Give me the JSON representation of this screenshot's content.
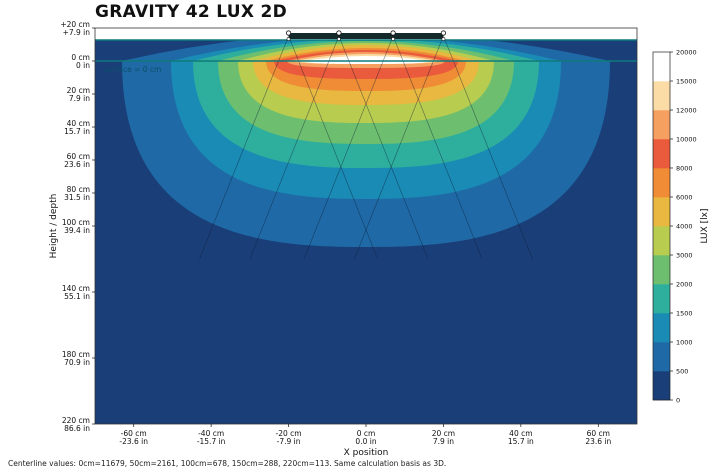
{
  "title": "GRAVITY 42 LUX 2D",
  "footnote": "Centerline values: 0cm=11679, 50cm=2161, 100cm=678, 150cm=288, 220cm=113. Same calculation basis as 3D.",
  "surface_label": "surface = 0 cm",
  "chart_data": {
    "type": "heatmap",
    "title": "GRAVITY 42 LUX 2D",
    "xlabel": "X position",
    "ylabel": "Height / depth",
    "xlim_cm": [
      -70,
      70
    ],
    "ylim_cm": [
      20,
      -220
    ],
    "x_ticks": [
      {
        "cm": -60,
        "label_cm": "-60 cm",
        "label_in": "-23.6 in"
      },
      {
        "cm": -40,
        "label_cm": "-40 cm",
        "label_in": "-15.7 in"
      },
      {
        "cm": -20,
        "label_cm": "-20 cm",
        "label_in": "-7.9 in"
      },
      {
        "cm": 0,
        "label_cm": "0 cm",
        "label_in": "0.0 in"
      },
      {
        "cm": 20,
        "label_cm": "20 cm",
        "label_in": "7.9 in"
      },
      {
        "cm": 40,
        "label_cm": "40 cm",
        "label_in": "15.7 in"
      },
      {
        "cm": 60,
        "label_cm": "60 cm",
        "label_in": "23.6 in"
      }
    ],
    "y_ticks": [
      {
        "cm": 20,
        "label_cm": "+20 cm",
        "label_in": "+7.9 in"
      },
      {
        "cm": 0,
        "label_cm": "0 cm",
        "label_in": "0 in"
      },
      {
        "cm": -20,
        "label_cm": "20 cm",
        "label_in": "7.9 in"
      },
      {
        "cm": -40,
        "label_cm": "40 cm",
        "label_in": "15.7 in"
      },
      {
        "cm": -60,
        "label_cm": "60 cm",
        "label_in": "23.6 in"
      },
      {
        "cm": -80,
        "label_cm": "80 cm",
        "label_in": "31.5 in"
      },
      {
        "cm": -100,
        "label_cm": "100 cm",
        "label_in": "39.4 in"
      },
      {
        "cm": -140,
        "label_cm": "140 cm",
        "label_in": "55.1 in"
      },
      {
        "cm": -180,
        "label_cm": "180 cm",
        "label_in": "70.9 in"
      },
      {
        "cm": -220,
        "label_cm": "220 cm",
        "label_in": "86.6 in"
      }
    ],
    "colorbar": {
      "label": "LUX [lx]",
      "levels": [
        0,
        500,
        1000,
        1500,
        2000,
        3000,
        4000,
        6000,
        8000,
        10000,
        12000,
        15000,
        20000
      ],
      "colors": [
        "#1a3f78",
        "#1f6aa6",
        "#1a8bb4",
        "#2eaf9e",
        "#6dbf6f",
        "#b8cc4f",
        "#e8b840",
        "#f08c35",
        "#ea5a3c",
        "#f5a060",
        "#fbdca6",
        "#ffffff"
      ]
    },
    "centerline": [
      {
        "depth_cm": 0,
        "lux": 11679
      },
      {
        "depth_cm": 50,
        "lux": 2161
      },
      {
        "depth_cm": 100,
        "lux": 678
      },
      {
        "depth_cm": 150,
        "lux": 288
      },
      {
        "depth_cm": 220,
        "lux": 113
      }
    ],
    "lamps_x_cm": [
      -20,
      -7,
      7,
      20
    ],
    "grid": false
  }
}
